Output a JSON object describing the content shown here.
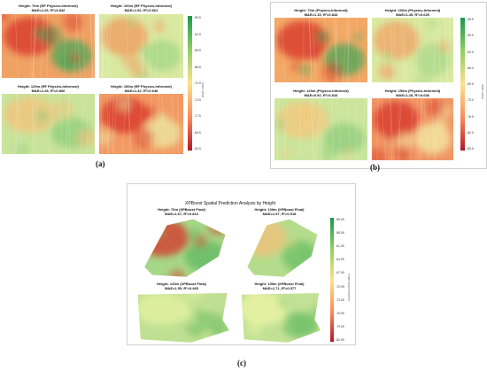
{
  "chart_data": [
    {
      "type": "heatmap",
      "panel_label": "(a)",
      "colormap": "RdYlGn",
      "panels": [
        {
          "title": "Height: 70m (RF Physics-Informed)",
          "metrics": "MAE=1.26, R²=0.842",
          "base": "#f0a264",
          "hot": "#d73027",
          "cool": "#3aa657"
        },
        {
          "title": "Height: 100m (RF Physics-Informed)",
          "metrics": "MAE=1.52, R²=0.661",
          "base": "#d9e9a0",
          "hot": "#f29b5d",
          "cool": "#9fd482"
        },
        {
          "title": "Height: 120m (RF Physics-Informed)",
          "metrics": "MAE=1.28, R²=0.806",
          "base": "#c8e39a",
          "hot": "#f5c179",
          "cool": "#8ccc7a"
        },
        {
          "title": "Height: 150m (RF Physics-Informed)",
          "metrics": "MAE=1.32, R²=0.648",
          "base": "#f29a64",
          "hot": "#d73027",
          "cool": "#e9f1a6"
        }
      ],
      "colorbar": {
        "label": "RSRP (dBm)",
        "ticks": [
          "-59.5",
          "-62.5",
          "-65.5",
          "-68.5",
          "-71.5",
          "-74.5",
          "-77.5",
          "-80.5",
          "-83.5"
        ],
        "range": [
          -83.5,
          -59.5
        ]
      }
    },
    {
      "type": "heatmap",
      "panel_label": "(b)",
      "colormap": "RdYlGn",
      "panels": [
        {
          "title": "Height: 70m (Physics-Informed)",
          "metrics": "MAE=1.15, R²=0.843",
          "base": "#f3a865",
          "hot": "#d73027",
          "cool": "#3aa657"
        },
        {
          "title": "Height: 100m (Physics-Informed)",
          "metrics": "MAE=1.45, R²=0.625",
          "base": "#d8e9a0",
          "hot": "#f3a265",
          "cool": "#a7d787"
        },
        {
          "title": "Height: 120m (Physics-Informed)",
          "metrics": "MAE=0.92, R²=0.816",
          "base": "#cbe59c",
          "hot": "#f6c77c",
          "cool": "#8ccc7a"
        },
        {
          "title": "Height: 150m (Physics-Informed)",
          "metrics": "MAE=1.28, R²=0.636",
          "base": "#f09664",
          "hot": "#d73027",
          "cool": "#f3f4ab"
        }
      ],
      "colorbar": {
        "label": "RSRP (dBm)",
        "ticks": [
          "-55.5",
          "-59.0",
          "-62.5",
          "-66.0",
          "-69.5",
          "-73.0",
          "-76.5",
          "-80.0",
          "-83.5"
        ],
        "range": [
          -83.5,
          -55.5
        ]
      }
    },
    {
      "type": "heatmap",
      "panel_label": "(c)",
      "colormap": "RdYlGn",
      "suptitle": "XPBoost Spatial Prediction Analysis by Height",
      "panels": [
        {
          "title": "Height: 70m (XPBoost Final)",
          "metrics": "MAE=1.67, R²=0.813",
          "base": "#a6d787",
          "hot": "#d73027",
          "cool": "#5bb761"
        },
        {
          "title": "Height: 100m (XPBoost Final)",
          "metrics": "MAE=1.97, R²=0.518",
          "base": "#b5dc8c",
          "hot": "#f4c07a",
          "cool": "#66bd63"
        },
        {
          "title": "Height: 120m (XPBoost Final)",
          "metrics": "MAE=1.55, R²=0.465",
          "base": "#bfe092",
          "hot": "#e6f3a2",
          "cool": "#7fc46c"
        },
        {
          "title": "Height: 150m (XPBoost Final)",
          "metrics": "MAE=1.71, R²=0.577",
          "base": "#c3e195",
          "hot": "#eef5a5",
          "cool": "#6bbf66"
        }
      ],
      "colorbar": {
        "label": "Predicted RSRP (dBm)",
        "ticks": [
          "-55.09",
          "-58.09",
          "-61.09",
          "-64.09",
          "-67.09",
          "-70.09",
          "-73.09",
          "-76.09",
          "-79.09",
          "-82.09"
        ],
        "range": [
          -82.09,
          -55.09
        ]
      }
    }
  ]
}
